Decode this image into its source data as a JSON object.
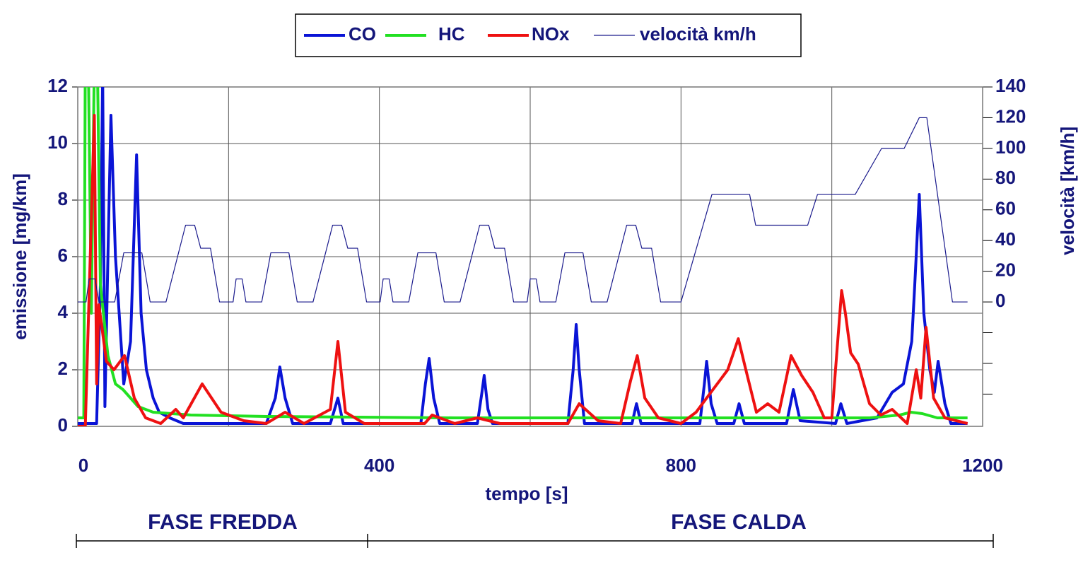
{
  "chart_data": {
    "type": "line",
    "xlabel": "tempo [s]",
    "ylabel": "emissione [mg/km]",
    "y2label": "velocità [km/h]",
    "annotations": [
      "FASE FREDDA",
      "FASE CALDA"
    ],
    "xlim": [
      0,
      1200
    ],
    "xticks": [
      0,
      400,
      800,
      1200
    ],
    "xminor": [
      200,
      600,
      1000
    ],
    "ylim": [
      0,
      12
    ],
    "yticks": [
      0,
      2,
      4,
      6,
      8,
      10,
      12
    ],
    "y2lim": [
      -81,
      140
    ],
    "y2ticks": [
      0,
      20,
      40,
      60,
      80,
      100,
      120,
      140
    ],
    "y2minor": [
      -20,
      -40,
      -60
    ],
    "grid": true,
    "legend": "top",
    "series": [
      {
        "name": "CO",
        "color": "#0a14d6",
        "x": [
          0,
          25,
          30,
          33,
          36,
          40,
          44,
          50,
          61,
          70,
          78,
          84,
          91,
          100,
          108,
          122,
          140,
          250,
          262,
          268,
          275,
          285,
          335,
          345,
          352,
          455,
          461,
          466,
          472,
          480,
          530,
          536,
          539,
          544,
          550,
          650,
          657,
          661,
          665,
          672,
          735,
          741,
          747,
          825,
          831,
          834,
          840,
          848,
          870,
          877,
          884,
          940,
          949,
          958,
          1005,
          1012,
          1020,
          1060,
          1080,
          1095,
          1106,
          1110,
          1116,
          1122,
          1130,
          1136,
          1141,
          1150,
          1158,
          1180
        ],
        "values": [
          0.1,
          0.1,
          5,
          12.5,
          0.7,
          6,
          11,
          6,
          1.5,
          3,
          9.6,
          4,
          2,
          1,
          0.5,
          0.3,
          0.1,
          0.1,
          1,
          2.1,
          1,
          0.1,
          0.1,
          1,
          0.1,
          0.1,
          1.5,
          2.4,
          1,
          0.1,
          0.1,
          1.2,
          1.8,
          0.6,
          0.1,
          0.1,
          2,
          3.6,
          2,
          0.1,
          0.1,
          0.8,
          0.1,
          0.1,
          1.5,
          2.3,
          0.8,
          0.1,
          0.1,
          0.8,
          0.1,
          0.1,
          1.3,
          0.2,
          0.1,
          0.8,
          0.1,
          0.3,
          1.2,
          1.5,
          3,
          5,
          8.2,
          4,
          2,
          1.2,
          2.3,
          0.8,
          0.1,
          0.1
        ]
      },
      {
        "name": "HC",
        "color": "#22e022",
        "x": [
          0,
          8,
          10,
          14,
          18,
          22,
          26,
          30,
          34,
          40,
          50,
          60,
          70,
          80,
          100,
          150,
          250,
          500,
          800,
          1050,
          1090,
          1105,
          1120,
          1140,
          1180
        ],
        "values": [
          0.3,
          0.3,
          13,
          13,
          4,
          13,
          13,
          5,
          4,
          2.5,
          1.5,
          1.3,
          1,
          0.7,
          0.5,
          0.4,
          0.35,
          0.3,
          0.3,
          0.3,
          0.4,
          0.5,
          0.45,
          0.3,
          0.3
        ]
      },
      {
        "name": "NOx",
        "color": "#ee1111",
        "x": [
          0,
          10,
          22,
          25,
          28,
          38,
          48,
          62,
          75,
          90,
          110,
          130,
          140,
          165,
          190,
          220,
          250,
          275,
          300,
          335,
          345,
          355,
          380,
          460,
          470,
          500,
          530,
          560,
          650,
          665,
          690,
          720,
          733,
          742,
          752,
          770,
          800,
          820,
          862,
          876,
          886,
          900,
          915,
          930,
          946,
          960,
          975,
          990,
          1000,
          1013,
          1018,
          1025,
          1035,
          1050,
          1065,
          1080,
          1100,
          1112,
          1118,
          1125,
          1135,
          1150,
          1180
        ],
        "values": [
          0,
          0,
          11,
          1.5,
          4.3,
          2.3,
          2,
          2.5,
          1,
          0.3,
          0.1,
          0.6,
          0.3,
          1.5,
          0.5,
          0.2,
          0.1,
          0.5,
          0.1,
          0.6,
          3,
          0.5,
          0.1,
          0.1,
          0.4,
          0.1,
          0.3,
          0.1,
          0.1,
          0.8,
          0.2,
          0.1,
          1.6,
          2.5,
          1,
          0.3,
          0.1,
          0.5,
          2,
          3.1,
          2,
          0.5,
          0.8,
          0.5,
          2.5,
          1.8,
          1.2,
          0.3,
          0.3,
          4.8,
          4,
          2.6,
          2.2,
          0.8,
          0.4,
          0.6,
          0.1,
          2,
          1,
          3.5,
          1,
          0.3,
          0.1
        ]
      },
      {
        "name": "velocità km/h",
        "color": "#1a1a8c",
        "axis": "y2",
        "x": [
          0,
          11,
          15,
          23,
          28,
          49,
          61,
          85,
          96,
          117,
          143,
          155,
          163,
          176,
          188,
          195,
          206,
          210,
          218,
          223,
          244,
          256,
          280,
          291,
          312,
          338,
          350,
          358,
          371,
          383,
          390,
          401,
          405,
          413,
          418,
          439,
          451,
          475,
          486,
          507,
          533,
          545,
          553,
          566,
          578,
          585,
          596,
          600,
          608,
          613,
          634,
          646,
          670,
          681,
          702,
          728,
          740,
          748,
          761,
          773,
          780,
          800,
          841,
          891,
          899,
          968,
          981,
          1031,
          1066,
          1096,
          1116,
          1126,
          1160,
          1180
        ],
        "values": [
          0,
          0,
          15,
          15,
          0,
          0,
          32,
          32,
          0,
          0,
          50,
          50,
          35,
          35,
          0,
          0,
          0,
          15,
          15,
          0,
          0,
          32,
          32,
          0,
          0,
          50,
          50,
          35,
          35,
          0,
          0,
          0,
          15,
          15,
          0,
          0,
          32,
          32,
          0,
          0,
          50,
          50,
          35,
          35,
          0,
          0,
          0,
          15,
          15,
          0,
          0,
          32,
          32,
          0,
          0,
          50,
          50,
          35,
          35,
          0,
          0,
          0,
          70,
          70,
          50,
          50,
          70,
          70,
          100,
          100,
          120,
          120,
          0,
          0
        ]
      }
    ]
  }
}
